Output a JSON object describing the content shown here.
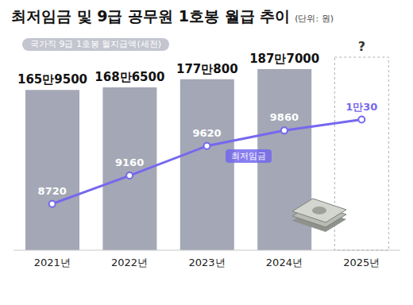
{
  "chart_data": {
    "type": "bar",
    "title": "최저임금 및 9급 공무원 1호봉 월급 추이",
    "subtitle": "(단위: 원)",
    "categories": [
      "2021년",
      "2022년",
      "2023년",
      "2024년",
      "2025년"
    ],
    "series": [
      {
        "name": "국가직 9급 1호봉 월지급액(세전)",
        "type": "bar",
        "color": "#a4a7b5",
        "values": [
          1659500,
          1686500,
          1770800,
          1877000,
          null
        ],
        "value_labels": [
          "165만9500",
          "168만6500",
          "177만800",
          "187만7000",
          "?"
        ]
      },
      {
        "name": "최저임금",
        "type": "line",
        "axis": "y2",
        "color": "#7568ee",
        "marker": "circle",
        "values": [
          8720,
          9160,
          9620,
          9860,
          10030
        ],
        "value_labels": [
          "8720",
          "9160",
          "9620",
          "9860",
          "1만30"
        ]
      }
    ],
    "ylim": [
      0,
      2000000
    ],
    "y2lim": [
      8000,
      11000
    ],
    "data_labels": true,
    "tick_labels": "x",
    "grid": false
  }
}
